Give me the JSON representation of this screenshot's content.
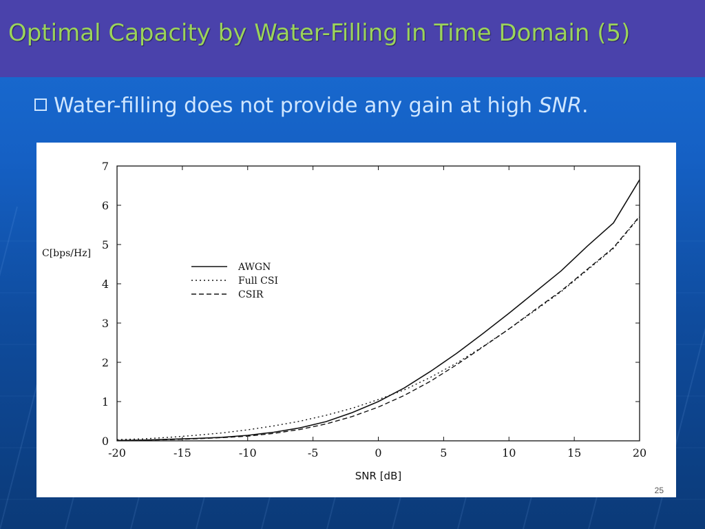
{
  "slide": {
    "title": "Optimal Capacity by Water-Filling in Time Domain (5)",
    "bullet_text": "Water-filling does not provide any gain at high ",
    "bullet_em": "SNR",
    "bullet_tail": ".",
    "page_number": "25",
    "colors": {
      "title_bar": "#4a42ab",
      "title_text": "#9bd45a",
      "bullet_text": "#cfe6ff",
      "background": "#1560c4"
    }
  },
  "chart_data": {
    "type": "line",
    "xlabel": "SNR [dB]",
    "ylabel": "C[bps/Hz]",
    "xlim": [
      -20,
      20
    ],
    "ylim": [
      0,
      7
    ],
    "xticks": [
      -20,
      -15,
      -10,
      -5,
      0,
      5,
      10,
      15,
      20
    ],
    "yticks": [
      0,
      1,
      2,
      3,
      4,
      5,
      6,
      7
    ],
    "legend_position": "upper-left",
    "x": [
      -20,
      -18,
      -16,
      -14,
      -12,
      -10,
      -8,
      -6,
      -4,
      -2,
      0,
      2,
      4,
      6,
      8,
      10,
      12,
      14,
      16,
      18,
      20
    ],
    "series": [
      {
        "name": "AWGN",
        "style": "solid",
        "values": [
          0.01,
          0.02,
          0.04,
          0.06,
          0.09,
          0.14,
          0.22,
          0.33,
          0.49,
          0.72,
          1.0,
          1.35,
          1.77,
          2.23,
          2.73,
          3.25,
          3.79,
          4.33,
          4.96,
          5.55,
          6.65
        ]
      },
      {
        "name": "Full CSI",
        "style": "dotted",
        "values": [
          0.03,
          0.05,
          0.09,
          0.14,
          0.2,
          0.28,
          0.38,
          0.5,
          0.65,
          0.83,
          1.05,
          1.3,
          1.62,
          1.98,
          2.4,
          2.85,
          3.32,
          3.8,
          4.35,
          4.9,
          5.7
        ]
      },
      {
        "name": "CSIR",
        "style": "dashed",
        "values": [
          0.01,
          0.02,
          0.03,
          0.05,
          0.08,
          0.12,
          0.19,
          0.29,
          0.43,
          0.62,
          0.86,
          1.16,
          1.52,
          1.94,
          2.39,
          2.85,
          3.34,
          3.82,
          4.37,
          4.92,
          5.72
        ]
      }
    ]
  }
}
